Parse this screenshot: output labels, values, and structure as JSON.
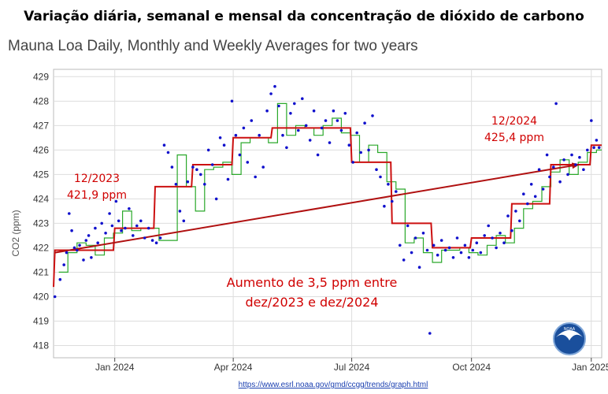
{
  "title": "Variação diária, semanal e mensal da concentração de dióxido de carbono",
  "subtitle": "Mauna Loa Daily, Monthly and Weekly Averages for two years",
  "source_url": "https://www.esrl.noaa.gov/gmd/ccgg/trends/graph.html",
  "logo_text": "NOAA",
  "annotations": {
    "dec2023_date": "12/2023",
    "dec2023_value": "421,9 ppm",
    "dec2024_date": "12/2024",
    "dec2024_value": "425,4 ppm",
    "increase_line1": "Aumento de 3,5 ppm entre",
    "increase_line2": "dez/2023 e dez/2024"
  },
  "colors": {
    "daily": "#1010cc",
    "weekly": "#2aa82a",
    "monthly": "#cc1010",
    "trend": "#b01010",
    "grid": "#dddddd",
    "axis": "#444444"
  },
  "chart_data": {
    "type": "line",
    "xlabel": "",
    "ylabel": "CO2 (ppm)",
    "ylim": [
      417.5,
      429.3
    ],
    "xlim": [
      "2023-11-15",
      "2025-01-09"
    ],
    "y_ticks": [
      418,
      419,
      420,
      421,
      422,
      423,
      424,
      425,
      426,
      427,
      428,
      429
    ],
    "x_ticks": [
      {
        "date": "2024-01-01",
        "label": "Jan 2024"
      },
      {
        "date": "2024-04-01",
        "label": "Apr 2024"
      },
      {
        "date": "2024-07-01",
        "label": "Jul 2024"
      },
      {
        "date": "2024-10-01",
        "label": "Oct 2024"
      },
      {
        "date": "2025-01-01",
        "label": "Jan 2025"
      }
    ],
    "grid": true,
    "series": [
      {
        "kind": "monthly",
        "points": [
          [
            "2023-11-15",
            420.4
          ],
          [
            "2023-11-16",
            421.9
          ],
          [
            "2023-12-31",
            421.9
          ],
          [
            "2024-01-01",
            422.8
          ],
          [
            "2024-01-31",
            422.8
          ],
          [
            "2024-02-01",
            424.5
          ],
          [
            "2024-02-29",
            424.5
          ],
          [
            "2024-03-01",
            425.4
          ],
          [
            "2024-03-31",
            425.4
          ],
          [
            "2024-04-01",
            426.5
          ],
          [
            "2024-04-30",
            426.5
          ],
          [
            "2024-05-01",
            426.9
          ],
          [
            "2024-05-31",
            426.9
          ],
          [
            "2024-06-01",
            426.9
          ],
          [
            "2024-06-30",
            426.9
          ],
          [
            "2024-07-01",
            425.5
          ],
          [
            "2024-07-31",
            425.5
          ],
          [
            "2024-08-01",
            423.0
          ],
          [
            "2024-08-31",
            423.0
          ],
          [
            "2024-09-01",
            422.0
          ],
          [
            "2024-09-30",
            422.0
          ],
          [
            "2024-10-01",
            422.4
          ],
          [
            "2024-10-31",
            422.4
          ],
          [
            "2024-11-01",
            423.8
          ],
          [
            "2024-11-30",
            423.8
          ],
          [
            "2024-12-01",
            425.4
          ],
          [
            "2024-12-31",
            425.4
          ],
          [
            "2025-01-01",
            426.2
          ],
          [
            "2025-01-09",
            426.2
          ]
        ]
      },
      {
        "kind": "weekly",
        "points": [
          [
            "2023-11-19",
            421.0
          ],
          [
            "2023-11-26",
            421.8
          ],
          [
            "2023-12-03",
            422.2
          ],
          [
            "2023-12-10",
            422.1
          ],
          [
            "2023-12-17",
            421.7
          ],
          [
            "2023-12-24",
            422.4
          ],
          [
            "2023-12-31",
            422.6
          ],
          [
            "2024-01-07",
            423.5
          ],
          [
            "2024-01-14",
            422.7
          ],
          [
            "2024-01-21",
            422.8
          ],
          [
            "2024-01-28",
            422.8
          ],
          [
            "2024-02-04",
            422.3
          ],
          [
            "2024-02-11",
            422.3
          ],
          [
            "2024-02-18",
            425.8
          ],
          [
            "2024-02-25",
            424.5
          ],
          [
            "2024-03-03",
            423.5
          ],
          [
            "2024-03-10",
            425.2
          ],
          [
            "2024-03-17",
            425.3
          ],
          [
            "2024-03-24",
            425.5
          ],
          [
            "2024-03-31",
            425.0
          ],
          [
            "2024-04-07",
            426.3
          ],
          [
            "2024-04-14",
            426.5
          ],
          [
            "2024-04-21",
            426.5
          ],
          [
            "2024-04-28",
            426.3
          ],
          [
            "2024-05-05",
            427.9
          ],
          [
            "2024-05-12",
            426.6
          ],
          [
            "2024-05-19",
            427.0
          ],
          [
            "2024-05-26",
            426.9
          ],
          [
            "2024-06-02",
            426.6
          ],
          [
            "2024-06-09",
            427.0
          ],
          [
            "2024-06-16",
            427.3
          ],
          [
            "2024-06-23",
            426.7
          ],
          [
            "2024-06-30",
            426.6
          ],
          [
            "2024-07-07",
            425.5
          ],
          [
            "2024-07-14",
            426.2
          ],
          [
            "2024-07-21",
            425.9
          ],
          [
            "2024-07-28",
            424.7
          ],
          [
            "2024-08-04",
            424.4
          ],
          [
            "2024-08-11",
            422.2
          ],
          [
            "2024-08-18",
            422.4
          ],
          [
            "2024-08-25",
            421.8
          ],
          [
            "2024-09-01",
            421.4
          ],
          [
            "2024-09-08",
            421.9
          ],
          [
            "2024-09-15",
            421.9
          ],
          [
            "2024-09-22",
            422.0
          ],
          [
            "2024-09-29",
            421.8
          ],
          [
            "2024-10-06",
            421.7
          ],
          [
            "2024-10-13",
            422.1
          ],
          [
            "2024-10-20",
            422.5
          ],
          [
            "2024-10-27",
            422.2
          ],
          [
            "2024-11-03",
            422.8
          ],
          [
            "2024-11-10",
            423.6
          ],
          [
            "2024-11-17",
            423.9
          ],
          [
            "2024-11-24",
            424.5
          ],
          [
            "2024-12-01",
            425.1
          ],
          [
            "2024-12-08",
            425.6
          ],
          [
            "2024-12-15",
            425.0
          ],
          [
            "2024-12-22",
            425.5
          ],
          [
            "2024-12-29",
            425.9
          ],
          [
            "2025-01-05",
            426.0
          ]
        ]
      },
      {
        "kind": "trend",
        "points": [
          [
            "2023-11-16",
            421.8
          ],
          [
            "2024-12-22",
            425.4
          ]
        ]
      },
      {
        "kind": "daily",
        "points": [
          [
            "2023-11-16",
            420.0
          ],
          [
            "2023-11-20",
            420.7
          ],
          [
            "2023-11-23",
            421.3
          ],
          [
            "2023-11-25",
            421.8
          ],
          [
            "2023-11-27",
            423.4
          ],
          [
            "2023-11-29",
            422.7
          ],
          [
            "2023-12-01",
            422.0
          ],
          [
            "2023-12-03",
            421.9
          ],
          [
            "2023-12-05",
            422.1
          ],
          [
            "2023-12-08",
            421.5
          ],
          [
            "2023-12-10",
            422.3
          ],
          [
            "2023-12-12",
            422.5
          ],
          [
            "2023-12-14",
            421.6
          ],
          [
            "2023-12-17",
            422.8
          ],
          [
            "2023-12-19",
            422.2
          ],
          [
            "2023-12-22",
            423.0
          ],
          [
            "2023-12-25",
            422.6
          ],
          [
            "2023-12-28",
            423.4
          ],
          [
            "2023-12-30",
            422.9
          ],
          [
            "2024-01-02",
            423.9
          ],
          [
            "2024-01-04",
            423.1
          ],
          [
            "2024-01-06",
            422.7
          ],
          [
            "2024-01-09",
            422.8
          ],
          [
            "2024-01-12",
            423.6
          ],
          [
            "2024-01-15",
            422.5
          ],
          [
            "2024-01-18",
            422.9
          ],
          [
            "2024-01-21",
            423.1
          ],
          [
            "2024-01-24",
            422.4
          ],
          [
            "2024-01-27",
            422.8
          ],
          [
            "2024-01-30",
            422.3
          ],
          [
            "2024-02-02",
            422.2
          ],
          [
            "2024-02-05",
            422.4
          ],
          [
            "2024-02-08",
            426.2
          ],
          [
            "2024-02-11",
            425.9
          ],
          [
            "2024-02-14",
            425.3
          ],
          [
            "2024-02-17",
            424.6
          ],
          [
            "2024-02-20",
            423.5
          ],
          [
            "2024-02-23",
            423.1
          ],
          [
            "2024-02-26",
            424.7
          ],
          [
            "2024-03-01",
            425.3
          ],
          [
            "2024-03-04",
            425.2
          ],
          [
            "2024-03-07",
            425.0
          ],
          [
            "2024-03-10",
            424.6
          ],
          [
            "2024-03-13",
            426.0
          ],
          [
            "2024-03-16",
            425.4
          ],
          [
            "2024-03-19",
            424.0
          ],
          [
            "2024-03-22",
            426.5
          ],
          [
            "2024-03-25",
            426.2
          ],
          [
            "2024-03-28",
            424.8
          ],
          [
            "2024-03-31",
            428.0
          ],
          [
            "2024-04-03",
            426.6
          ],
          [
            "2024-04-06",
            425.8
          ],
          [
            "2024-04-09",
            426.9
          ],
          [
            "2024-04-12",
            425.5
          ],
          [
            "2024-04-15",
            427.2
          ],
          [
            "2024-04-18",
            424.9
          ],
          [
            "2024-04-21",
            426.6
          ],
          [
            "2024-04-24",
            425.3
          ],
          [
            "2024-04-27",
            427.6
          ],
          [
            "2024-04-30",
            428.3
          ],
          [
            "2024-05-03",
            428.6
          ],
          [
            "2024-05-06",
            427.8
          ],
          [
            "2024-05-09",
            426.6
          ],
          [
            "2024-05-12",
            426.1
          ],
          [
            "2024-05-15",
            427.5
          ],
          [
            "2024-05-18",
            427.9
          ],
          [
            "2024-05-21",
            426.8
          ],
          [
            "2024-05-24",
            428.1
          ],
          [
            "2024-05-27",
            427.0
          ],
          [
            "2024-05-30",
            426.4
          ],
          [
            "2024-06-02",
            427.6
          ],
          [
            "2024-06-05",
            425.8
          ],
          [
            "2024-06-08",
            426.9
          ],
          [
            "2024-06-11",
            427.2
          ],
          [
            "2024-06-14",
            426.3
          ],
          [
            "2024-06-17",
            427.6
          ],
          [
            "2024-06-20",
            427.2
          ],
          [
            "2024-06-23",
            426.8
          ],
          [
            "2024-06-26",
            427.5
          ],
          [
            "2024-06-29",
            426.2
          ],
          [
            "2024-07-02",
            425.5
          ],
          [
            "2024-07-05",
            426.7
          ],
          [
            "2024-07-08",
            425.9
          ],
          [
            "2024-07-11",
            427.1
          ],
          [
            "2024-07-14",
            426.0
          ],
          [
            "2024-07-17",
            427.4
          ],
          [
            "2024-07-20",
            425.2
          ],
          [
            "2024-07-23",
            424.9
          ],
          [
            "2024-07-26",
            423.7
          ],
          [
            "2024-07-29",
            424.6
          ],
          [
            "2024-08-01",
            423.9
          ],
          [
            "2024-08-04",
            424.3
          ],
          [
            "2024-08-07",
            422.1
          ],
          [
            "2024-08-10",
            421.5
          ],
          [
            "2024-08-13",
            422.9
          ],
          [
            "2024-08-16",
            421.8
          ],
          [
            "2024-08-19",
            422.4
          ],
          [
            "2024-08-22",
            421.2
          ],
          [
            "2024-08-25",
            422.6
          ],
          [
            "2024-08-28",
            421.9
          ],
          [
            "2024-08-30",
            418.5
          ],
          [
            "2024-09-02",
            422.1
          ],
          [
            "2024-09-05",
            421.7
          ],
          [
            "2024-09-08",
            422.3
          ],
          [
            "2024-09-11",
            421.9
          ],
          [
            "2024-09-14",
            422.0
          ],
          [
            "2024-09-17",
            421.6
          ],
          [
            "2024-09-20",
            422.4
          ],
          [
            "2024-09-23",
            421.8
          ],
          [
            "2024-09-26",
            422.1
          ],
          [
            "2024-09-29",
            421.6
          ],
          [
            "2024-10-02",
            421.9
          ],
          [
            "2024-10-05",
            422.2
          ],
          [
            "2024-10-08",
            421.8
          ],
          [
            "2024-10-11",
            422.5
          ],
          [
            "2024-10-14",
            422.9
          ],
          [
            "2024-10-17",
            422.4
          ],
          [
            "2024-10-20",
            422.0
          ],
          [
            "2024-10-23",
            422.6
          ],
          [
            "2024-10-26",
            422.2
          ],
          [
            "2024-10-29",
            423.3
          ],
          [
            "2024-11-01",
            422.7
          ],
          [
            "2024-11-04",
            423.5
          ],
          [
            "2024-11-07",
            423.1
          ],
          [
            "2024-11-10",
            424.2
          ],
          [
            "2024-11-13",
            423.8
          ],
          [
            "2024-11-16",
            424.6
          ],
          [
            "2024-11-19",
            424.1
          ],
          [
            "2024-11-22",
            425.2
          ],
          [
            "2024-11-25",
            424.4
          ],
          [
            "2024-11-28",
            425.8
          ],
          [
            "2024-11-30",
            424.9
          ],
          [
            "2024-12-03",
            425.3
          ],
          [
            "2024-12-05",
            427.9
          ],
          [
            "2024-12-08",
            424.7
          ],
          [
            "2024-12-11",
            425.6
          ],
          [
            "2024-12-14",
            425.0
          ],
          [
            "2024-12-17",
            425.8
          ],
          [
            "2024-12-20",
            425.4
          ],
          [
            "2024-12-23",
            425.7
          ],
          [
            "2024-12-26",
            425.2
          ],
          [
            "2024-12-29",
            426.0
          ],
          [
            "2025-01-01",
            427.2
          ],
          [
            "2025-01-03",
            426.1
          ],
          [
            "2025-01-05",
            426.4
          ],
          [
            "2025-01-07",
            426.1
          ]
        ]
      }
    ]
  }
}
